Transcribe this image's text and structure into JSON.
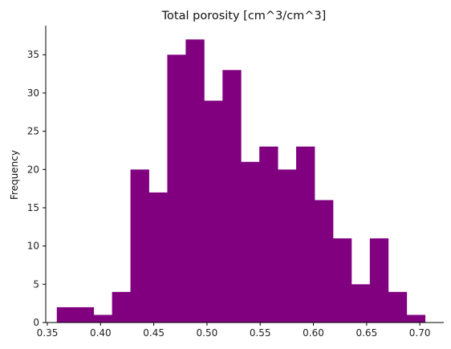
{
  "chart_data": {
    "type": "bar",
    "subtype": "histogram",
    "title": "Total porosity [cm^3/cm^3]",
    "xlabel": "",
    "ylabel": "Frequency",
    "bin_edges": [
      0.3589,
      0.3762,
      0.3935,
      0.4108,
      0.4281,
      0.4454,
      0.4627,
      0.48,
      0.4973,
      0.5146,
      0.5319,
      0.5492,
      0.5665,
      0.5838,
      0.6011,
      0.6184,
      0.6357,
      0.653,
      0.6703,
      0.6876,
      0.7049
    ],
    "values": [
      2,
      2,
      1,
      4,
      20,
      17,
      35,
      37,
      29,
      33,
      21,
      23,
      20,
      23,
      16,
      11,
      5,
      11,
      4,
      1
    ],
    "xlim": [
      0.3485,
      0.7225
    ],
    "ylim": [
      0,
      38.8
    ],
    "xticks": [
      0.35,
      0.4,
      0.45,
      0.5,
      0.55,
      0.6,
      0.65,
      0.7
    ],
    "xtick_labels": [
      "0.35",
      "0.40",
      "0.45",
      "0.50",
      "0.55",
      "0.60",
      "0.65",
      "0.70"
    ],
    "yticks": [
      0,
      5,
      10,
      15,
      20,
      25,
      30,
      35
    ],
    "ytick_labels": [
      "0",
      "5",
      "10",
      "15",
      "20",
      "25",
      "30",
      "35"
    ],
    "bar_color": "#800080",
    "grid": false,
    "spines": [
      "left",
      "bottom"
    ]
  }
}
